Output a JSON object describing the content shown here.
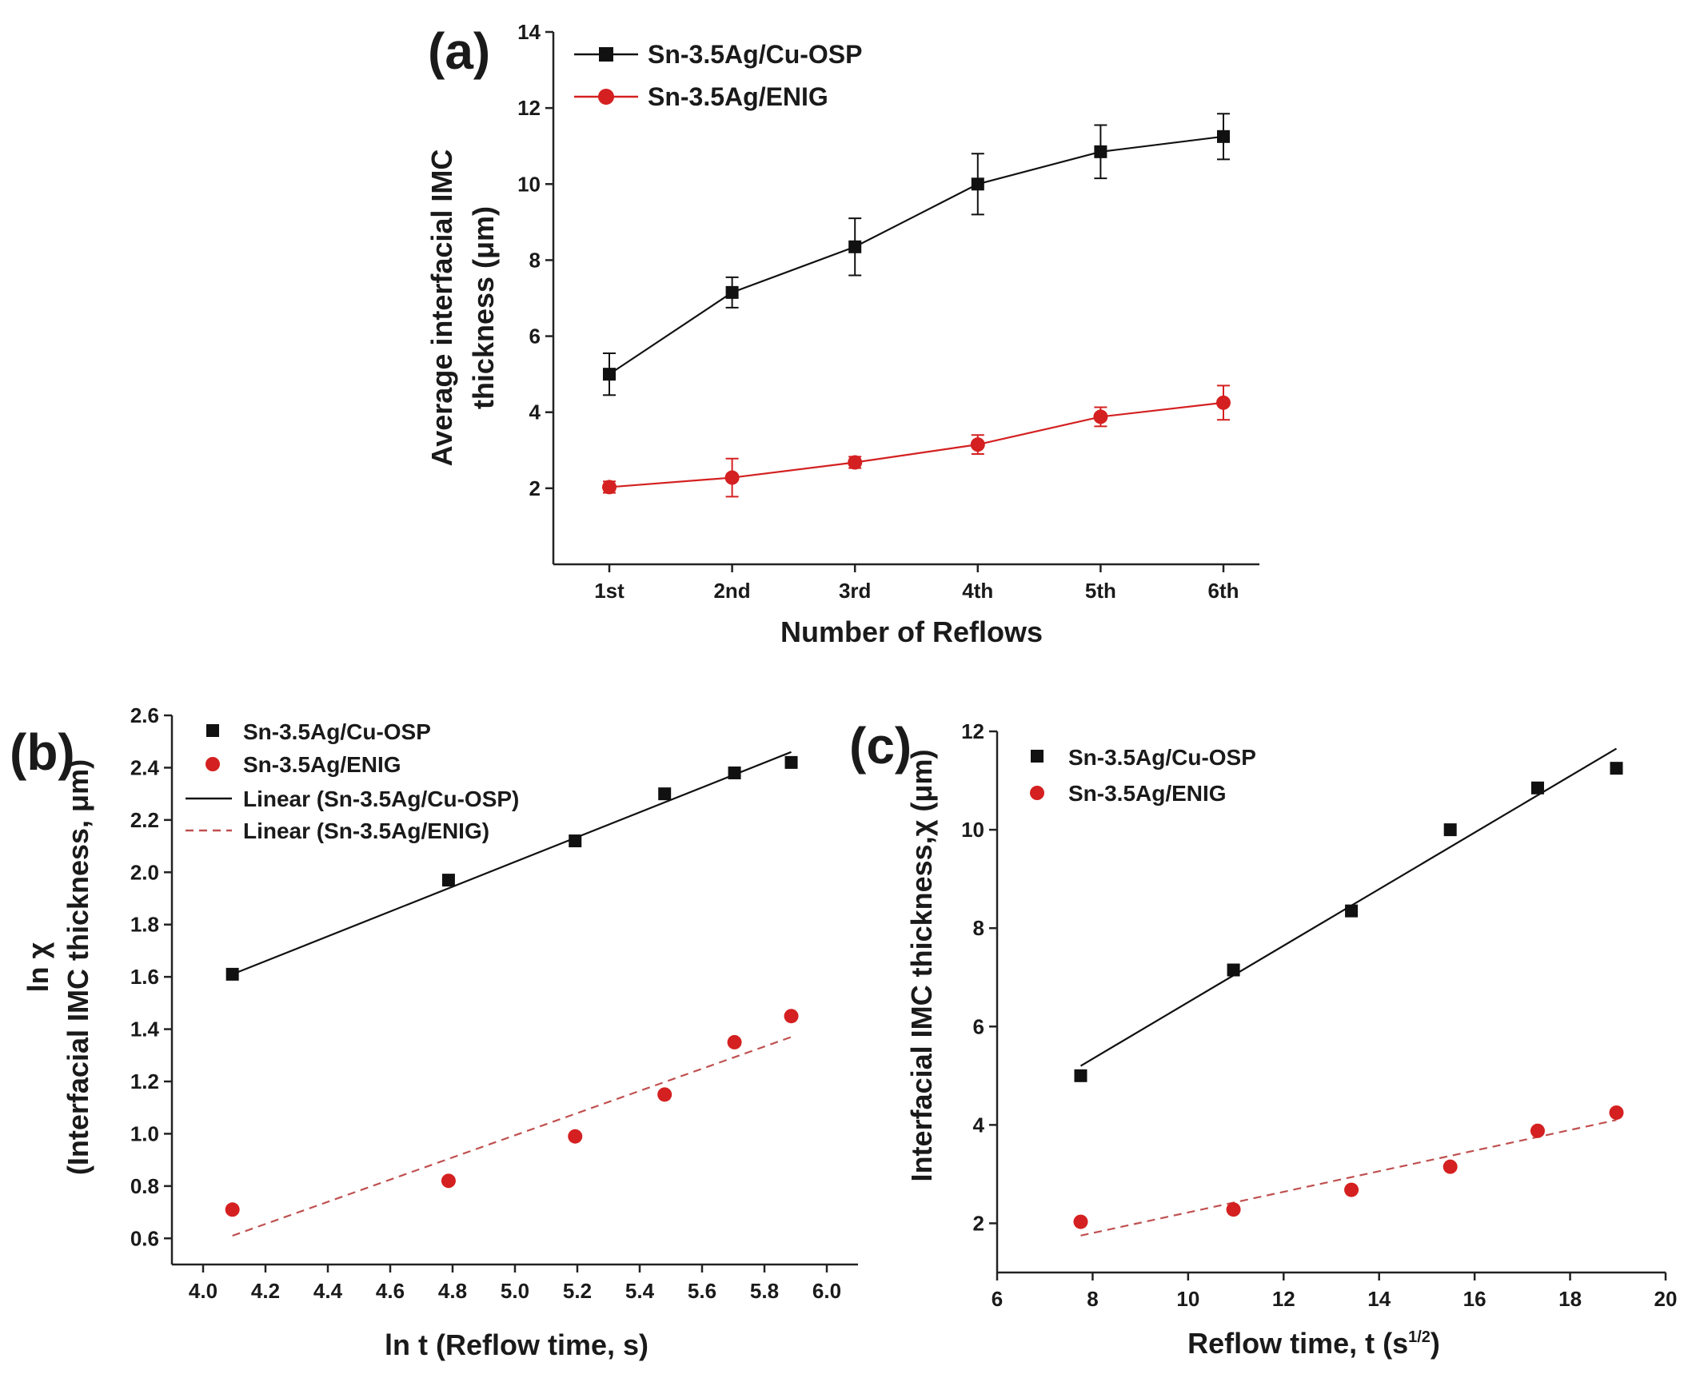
{
  "colors": {
    "black_series": "#111111",
    "red_series": "#d42020",
    "red_fit": "#c05050"
  },
  "chart_data": [
    {
      "id": "a",
      "panel_label": "(a)",
      "type": "line",
      "categories": [
        "1st",
        "2nd",
        "3rd",
        "4th",
        "5th",
        "6th"
      ],
      "xlabel": "Number of Reflows",
      "ylabel_lines": [
        "Average interfacial IMC",
        "thickness (μm)"
      ],
      "ylim": [
        0,
        14
      ],
      "yticks": [
        2,
        4,
        6,
        8,
        10,
        12,
        14
      ],
      "series": [
        {
          "name": "Sn-3.5Ag/Cu-OSP",
          "marker": "square",
          "color": "#111111",
          "values": [
            5.0,
            7.15,
            8.35,
            10.0,
            10.85,
            11.25
          ],
          "errors": [
            0.55,
            0.4,
            0.75,
            0.8,
            0.7,
            0.6
          ]
        },
        {
          "name": "Sn-3.5Ag/ENIG",
          "marker": "circle",
          "color": "#d42020",
          "values": [
            2.03,
            2.28,
            2.68,
            3.15,
            3.88,
            4.25
          ],
          "errors": [
            0.15,
            0.5,
            0.15,
            0.25,
            0.25,
            0.45
          ]
        }
      ]
    },
    {
      "id": "b",
      "panel_label": "(b)",
      "type": "scatter",
      "xlabel": "ln t (Reflow time, s)",
      "ylabel_lines": [
        "ln χ",
        "(Interfacial IMC thickness, μm)"
      ],
      "xlim": [
        3.9,
        6.1
      ],
      "ylim": [
        0.5,
        2.6
      ],
      "xticks": [
        4.0,
        4.2,
        4.4,
        4.6,
        4.8,
        5.0,
        5.2,
        5.4,
        5.6,
        5.8,
        6.0
      ],
      "yticks": [
        0.6,
        0.8,
        1.0,
        1.2,
        1.4,
        1.6,
        1.8,
        2.0,
        2.2,
        2.4,
        2.6
      ],
      "series": [
        {
          "name": "Sn-3.5Ag/Cu-OSP",
          "marker": "square",
          "color": "#111111",
          "x": [
            4.094,
            4.787,
            5.193,
            5.48,
            5.704,
            5.886
          ],
          "y": [
            1.61,
            1.97,
            2.12,
            2.3,
            2.38,
            2.42
          ]
        },
        {
          "name": "Sn-3.5Ag/ENIG",
          "marker": "circle",
          "color": "#d42020",
          "x": [
            4.094,
            4.787,
            5.193,
            5.48,
            5.704,
            5.886
          ],
          "y": [
            0.71,
            0.82,
            0.99,
            1.15,
            1.35,
            1.45
          ]
        }
      ],
      "fits": [
        {
          "name": "Linear (Sn-3.5Ag/Cu-OSP)",
          "style": "solid",
          "color": "#111111",
          "x": [
            4.094,
            5.886
          ],
          "y": [
            1.61,
            2.46
          ]
        },
        {
          "name": "Linear (Sn-3.5Ag/ENIG)",
          "style": "dashed",
          "color": "#c05050",
          "x": [
            4.094,
            5.886
          ],
          "y": [
            0.61,
            1.37
          ]
        }
      ]
    },
    {
      "id": "c",
      "panel_label": "(c)",
      "type": "scatter",
      "xlabel": "Reflow time, t (s",
      "xlabel_sup": "1/2",
      "xlabel_end": ")",
      "ylabel_lines": [
        "Interfacial IMC thickness,χ (μm)"
      ],
      "xlim": [
        6,
        20
      ],
      "ylim": [
        1,
        12
      ],
      "xticks": [
        6,
        8,
        10,
        12,
        14,
        16,
        18,
        20
      ],
      "yticks": [
        2,
        4,
        6,
        8,
        10,
        12
      ],
      "series": [
        {
          "name": "Sn-3.5Ag/Cu-OSP",
          "marker": "square",
          "color": "#111111",
          "x": [
            7.75,
            10.95,
            13.42,
            15.49,
            17.32,
            18.97
          ],
          "y": [
            5.0,
            7.15,
            8.35,
            10.0,
            10.85,
            11.25
          ]
        },
        {
          "name": "Sn-3.5Ag/ENIG",
          "marker": "circle",
          "color": "#d42020",
          "x": [
            7.75,
            10.95,
            13.42,
            15.49,
            17.32,
            18.97
          ],
          "y": [
            2.03,
            2.28,
            2.68,
            3.15,
            3.88,
            4.25
          ]
        }
      ],
      "fits": [
        {
          "name": "",
          "style": "solid",
          "color": "#111111",
          "x": [
            7.75,
            18.97
          ],
          "y": [
            5.2,
            11.65
          ]
        },
        {
          "name": "",
          "style": "dashed",
          "color": "#c05050",
          "x": [
            7.75,
            18.97
          ],
          "y": [
            1.75,
            4.1
          ]
        }
      ]
    }
  ]
}
